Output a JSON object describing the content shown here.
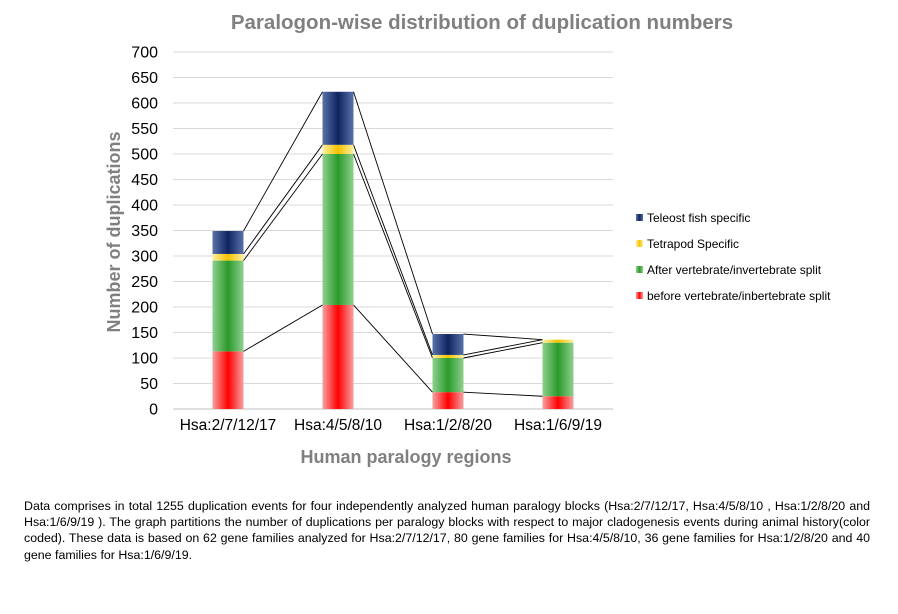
{
  "chart_data": {
    "type": "bar",
    "stacked": true,
    "title": "Paralogon-wise distribution of duplication numbers",
    "xlabel": "Human paralogy regions",
    "ylabel": "Number of duplications",
    "categories": [
      "Hsa:2/7/12/17",
      "Hsa:4/5/8/10",
      "Hsa:1/2/8/20",
      "Hsa:1/6/9/19"
    ],
    "ylim": [
      0,
      700
    ],
    "yticks": [
      0,
      50,
      100,
      150,
      200,
      250,
      300,
      350,
      400,
      450,
      500,
      550,
      600,
      650,
      700
    ],
    "grid": true,
    "legend_position": "right",
    "series": [
      {
        "name": "before vertebrate/inbertebrate split",
        "color": "#e8141b",
        "values": [
          113,
          204,
          33,
          25
        ]
      },
      {
        "name": "After vertebrate/invertebrate split",
        "color": "#2e9a2e",
        "values": [
          178,
          296,
          67,
          105
        ]
      },
      {
        "name": "Tetrapod Specific",
        "color": "#f2c200",
        "values": [
          13,
          18,
          6,
          6
        ]
      },
      {
        "name": "Teleost fish specific",
        "color": "#16306e",
        "values": [
          45,
          104,
          41,
          0
        ]
      }
    ]
  },
  "caption": "Data comprises in total 1255 duplication events for four independently analyzed human paralogy blocks (Hsa:2/7/12/17, Hsa:4/5/8/10 , Hsa:1/2/8/20 and Hsa:1/6/9/19 ). The graph partitions the number of duplications per paralogy blocks with respect to major cladogenesis events during animal history(color coded). These data is based on 62 gene families analyzed for Hsa:2/7/12/17, 80 gene families for Hsa:4/5/8/10, 36 gene families for Hsa:1/2/8/20 and 40 gene families for Hsa:1/6/9/19."
}
